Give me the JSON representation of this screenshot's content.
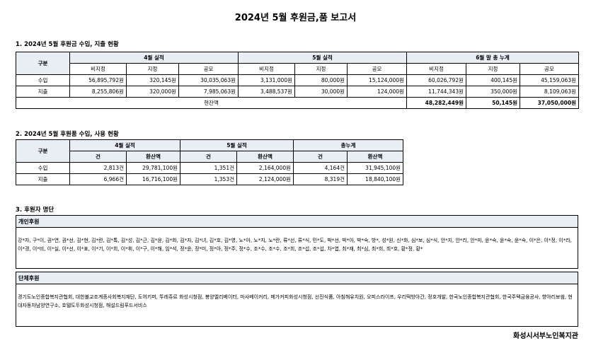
{
  "title": "2024년 5월 후원금,품 보고서",
  "section1": {
    "heading": "1. 2024년 5월 후원금 수입, 지출 현황",
    "col_label": "구분",
    "groups": [
      "4월 실적",
      "5월 실적",
      "6월 말 총 누계"
    ],
    "subcols": [
      "비지정",
      "지정",
      "공모"
    ],
    "rows": [
      {
        "label": "수입",
        "values": [
          "56,895,792원",
          "320,145원",
          "30,035,063원",
          "3,131,000원",
          "80,000원",
          "15,124,000원",
          "60,026,792원",
          "400,145원",
          "45,159,063원"
        ]
      },
      {
        "label": "지출",
        "values": [
          "8,255,806원",
          "320,000원",
          "7,985,063원",
          "3,488,537원",
          "30,000원",
          "124,000원",
          "11,744,343원",
          "350,000원",
          "8,109,063원"
        ]
      }
    ],
    "balance": {
      "label": "현잔액",
      "values": [
        "48,282,449원",
        "50,145원",
        "37,050,000원"
      ]
    }
  },
  "section2": {
    "heading": "2. 2024년 5월 후원품 수입, 사용 현황",
    "col_label": "구분",
    "groups": [
      "4월 실적",
      "5월 실적",
      "총누계"
    ],
    "subcols": [
      "건",
      "환산액"
    ],
    "rows": [
      {
        "label": "수입",
        "values": [
          "2,813건",
          "29,781,100원",
          "1,351건",
          "2,164,000원",
          "4,164건",
          "31,945,100원"
        ]
      },
      {
        "label": "지출",
        "values": [
          "6,966건",
          "16,716,100원",
          "1,353건",
          "2,124,000원",
          "8,319건",
          "18,840,100원"
        ]
      }
    ]
  },
  "section3": {
    "heading": "3. 후원자 명단",
    "individual": {
      "label": "개인후원",
      "names": "강*자, 구*이, 권*연, 권*선, 김*현, 김*란, 김*톡, 김*성, 김*근, 김*윤, 김*화, 김*자, 김*녀, 김*호, 김*영, 노*아, 노*지, 노*란, 류*선, 류*식, 민*도, 박*선, 박*아, 박*숙, 방*, 성*원, 신*화, 심*보, 심*식, 안*지, 안*리, 안*미, 윤*숙, 윤*숙, 윤*숙, 이*은, 이*정, 이*라, 이*경, 이*비, 이*실, 이*선, 이*표, 이*기, 이*희, 이*휘, 이*구, 이*해, 임*석, 정*윤, 정*미, 정*아, 정*주, 정*수, 조*수, 조*수, 조*희, 조*섭, 조*섭, 차*엽, 최*재, 최*심, 최*희, 최*호, 황*정, 황*"
    },
    "group": {
      "label": "단체후원",
      "names": "경기도노인종합복지관협회, 대한불교조계종사회복지재단, 도어키퍼, 뚜레쥬르 화성시청점, 봉양엘리베이터, 마사베이커리, 메가커피화성시청점, 선진식품, 아침해유치원, 오피스라이프, 우리떡방아간, 정호개발, 한국노인종합복지관협회, 한국주택금융공사, 향아리보쌈, 현대자동차남양연구소, 호텔도두화성시청점, 해설드림푸드서비스"
    }
  },
  "footer": "화성시서부노인복지관"
}
